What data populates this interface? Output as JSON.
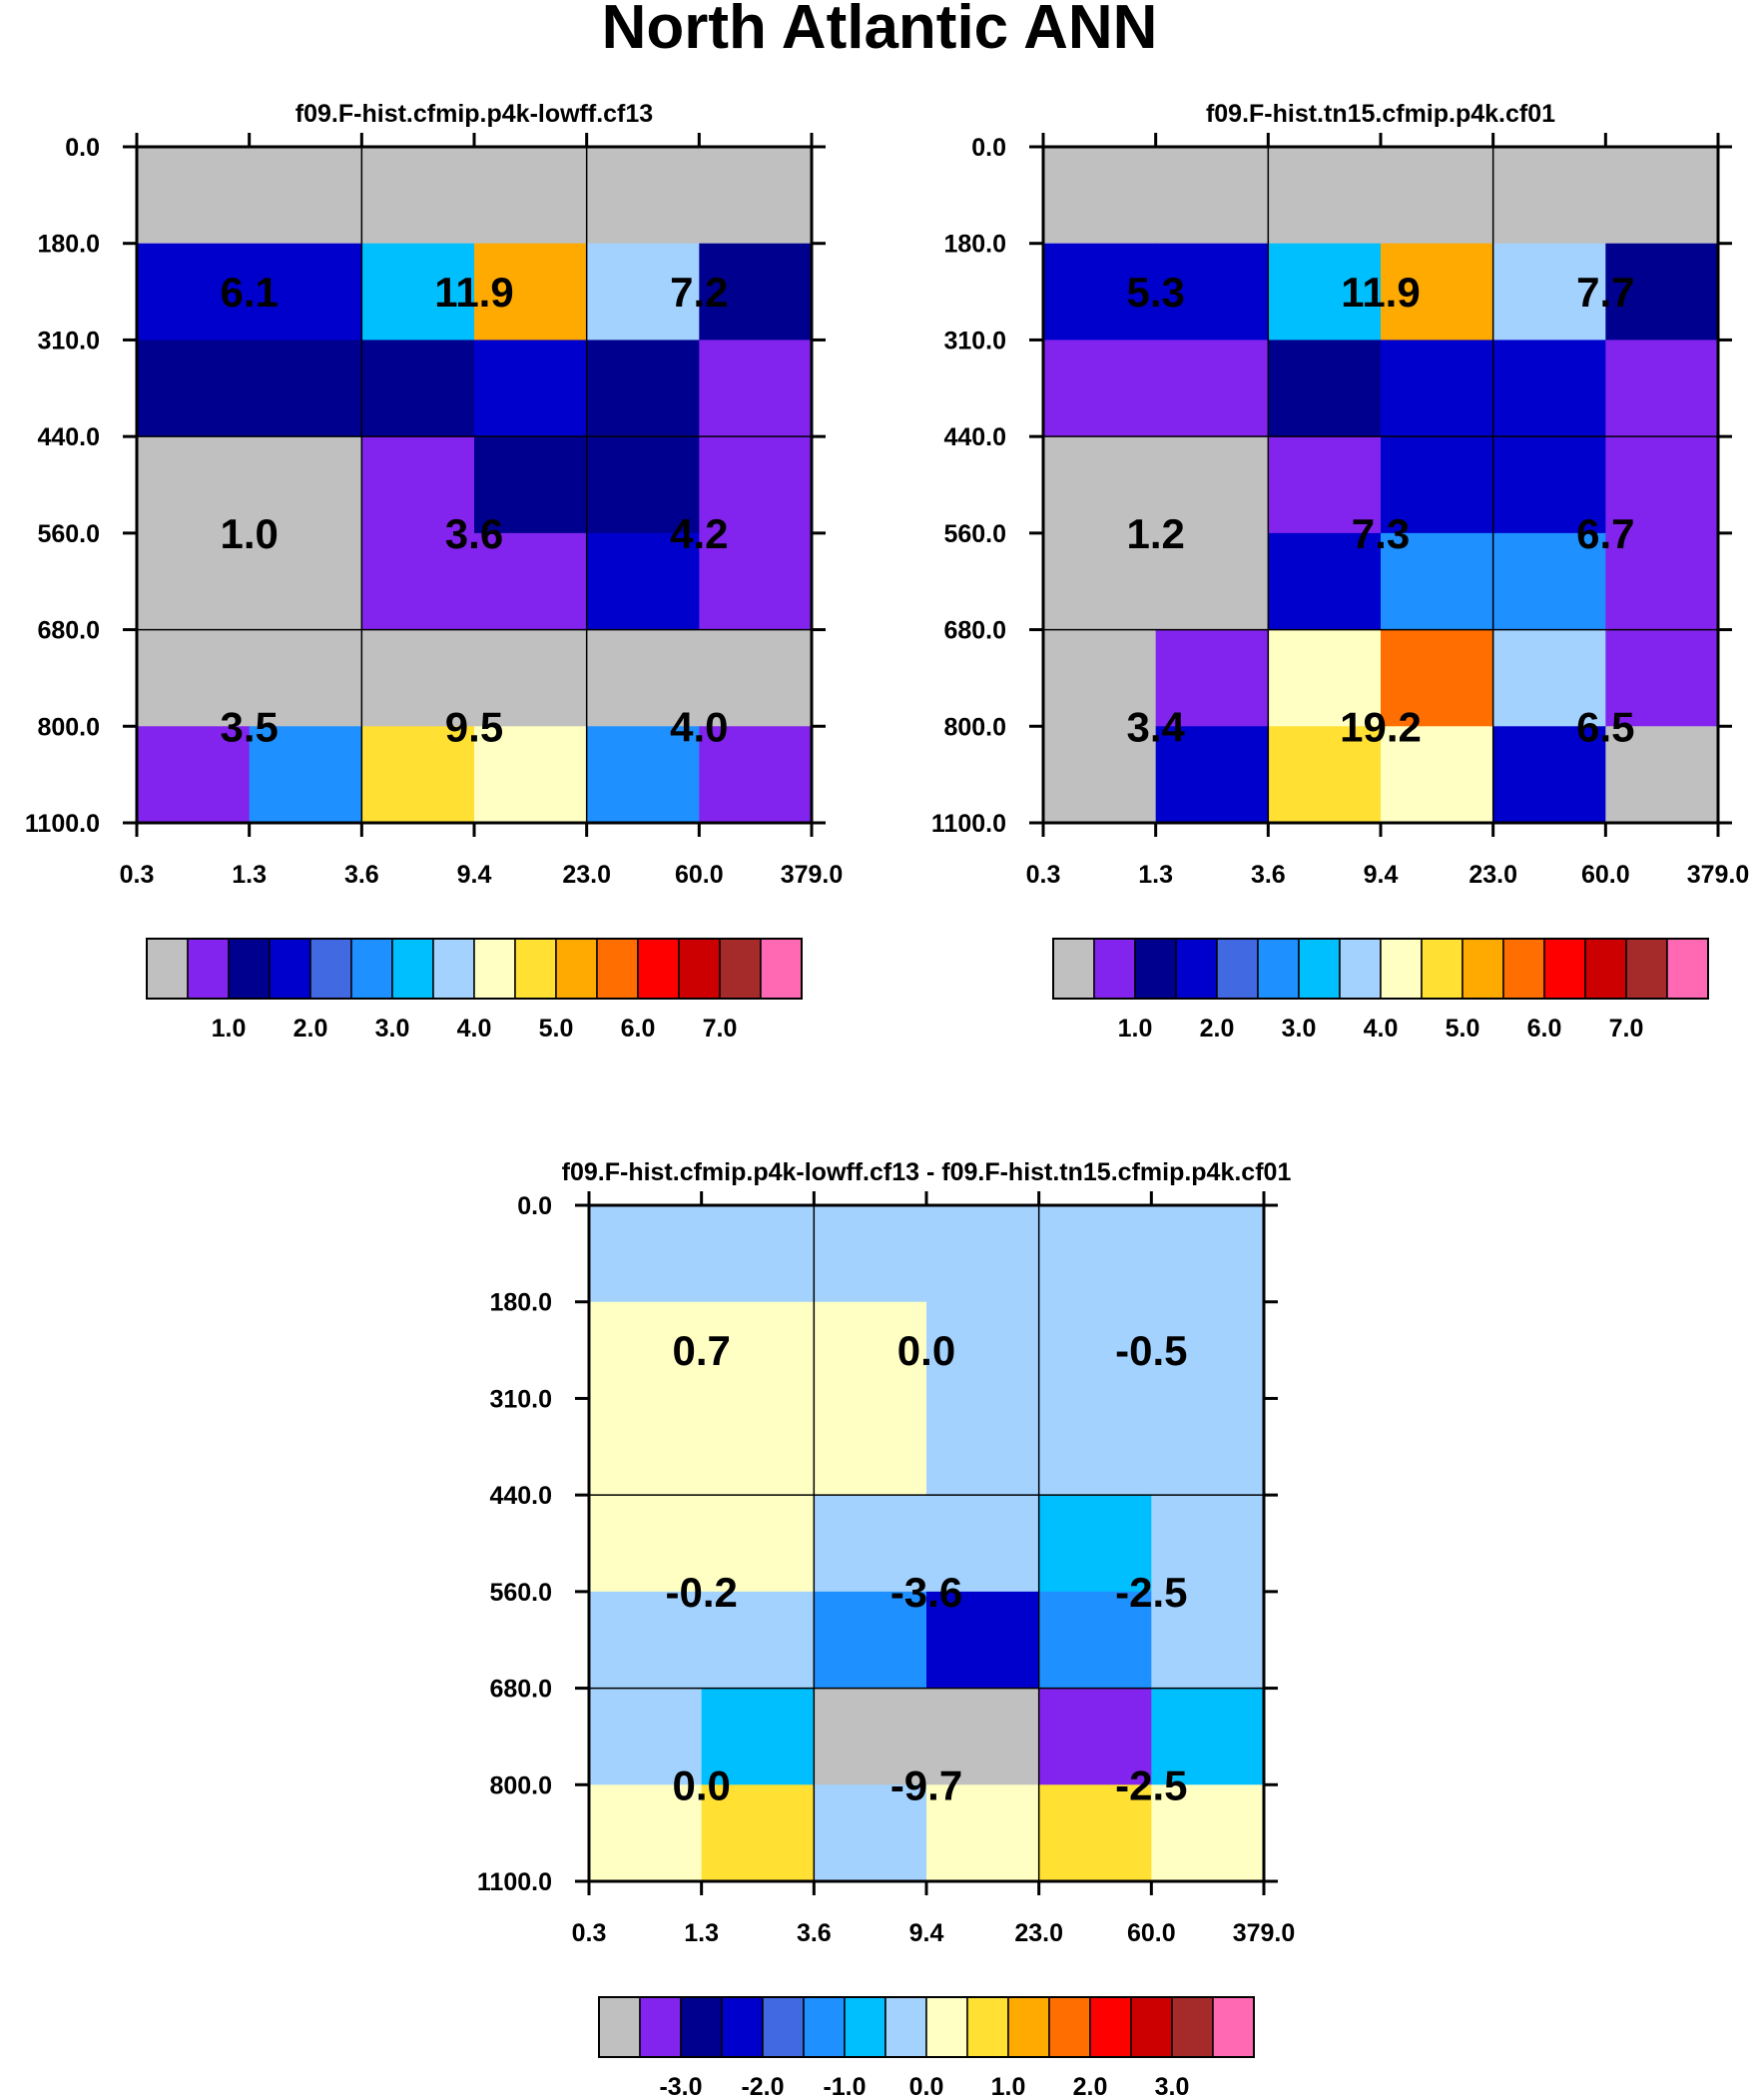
{
  "title": "North Atlantic ANN",
  "chart_data": [
    {
      "type": "heatmap",
      "title": "f09.F-hist.cfmip.p4k-lowff.cf13",
      "xlabel": "",
      "ylabel": "",
      "x_ticks": [
        "0.3",
        "1.3",
        "3.6",
        "9.4",
        "23.0",
        "60.0",
        "379.0"
      ],
      "y_ticks": [
        "0.0",
        "180.0",
        "310.0",
        "440.0",
        "560.0",
        "680.0",
        "800.0",
        "1100.0"
      ],
      "cell_colors": [
        [
          "gray",
          "gray",
          "gray",
          "gray",
          "gray",
          "gray"
        ],
        [
          "blue",
          "blue",
          "deepskyblue",
          "orange",
          "lightblue",
          "navy"
        ],
        [
          "navy",
          "navy",
          "navy",
          "blue",
          "navy",
          "purple"
        ],
        [
          "gray",
          "gray",
          "purple",
          "navy",
          "navy",
          "purple"
        ],
        [
          "gray",
          "gray",
          "purple",
          "purple",
          "blue",
          "purple"
        ],
        [
          "gray",
          "gray",
          "gray",
          "gray",
          "gray",
          "gray"
        ],
        [
          "purple",
          "dodgerblue",
          "gold",
          "lightyellow",
          "dodgerblue",
          "purple"
        ]
      ],
      "block_labels": [
        [
          "6.1",
          "11.9",
          "7.2"
        ],
        [
          "1.0",
          "3.6",
          "4.2"
        ],
        [
          "3.5",
          "9.5",
          "4.0"
        ]
      ],
      "colorbar": {
        "tick_labels": [
          "1.0",
          "2.0",
          "3.0",
          "4.0",
          "5.0",
          "6.0",
          "7.0"
        ],
        "tick_values": [
          1,
          2,
          3,
          4,
          5,
          6,
          7
        ]
      }
    },
    {
      "type": "heatmap",
      "title": "f09.F-hist.tn15.cfmip.p4k.cf01",
      "xlabel": "",
      "ylabel": "",
      "x_ticks": [
        "0.3",
        "1.3",
        "3.6",
        "9.4",
        "23.0",
        "60.0",
        "379.0"
      ],
      "y_ticks": [
        "0.0",
        "180.0",
        "310.0",
        "440.0",
        "560.0",
        "680.0",
        "800.0",
        "1100.0"
      ],
      "cell_colors": [
        [
          "gray",
          "gray",
          "gray",
          "gray",
          "gray",
          "gray"
        ],
        [
          "blue",
          "blue",
          "deepskyblue",
          "orange",
          "lightblue",
          "navy"
        ],
        [
          "purple",
          "purple",
          "navy",
          "blue",
          "blue",
          "purple"
        ],
        [
          "gray",
          "gray",
          "purple",
          "blue",
          "blue",
          "purple"
        ],
        [
          "gray",
          "gray",
          "blue",
          "dodgerblue",
          "dodgerblue",
          "purple"
        ],
        [
          "gray",
          "purple",
          "lightyellow",
          "darkorange",
          "lightblue",
          "purple"
        ],
        [
          "gray",
          "blue",
          "gold",
          "lightyellow",
          "blue",
          "gray"
        ]
      ],
      "block_labels": [
        [
          "5.3",
          "11.9",
          "7.7"
        ],
        [
          "1.2",
          "7.3",
          "6.7"
        ],
        [
          "3.4",
          "19.2",
          "6.5"
        ]
      ],
      "colorbar": {
        "tick_labels": [
          "1.0",
          "2.0",
          "3.0",
          "4.0",
          "5.0",
          "6.0",
          "7.0"
        ],
        "tick_values": [
          1,
          2,
          3,
          4,
          5,
          6,
          7
        ]
      }
    },
    {
      "type": "heatmap",
      "title": "f09.F-hist.cfmip.p4k-lowff.cf13 - f09.F-hist.tn15.cfmip.p4k.cf01",
      "xlabel": "",
      "ylabel": "",
      "x_ticks": [
        "0.3",
        "1.3",
        "3.6",
        "9.4",
        "23.0",
        "60.0",
        "379.0"
      ],
      "y_ticks": [
        "0.0",
        "180.0",
        "310.0",
        "440.0",
        "560.0",
        "680.0",
        "800.0",
        "1100.0"
      ],
      "cell_colors": [
        [
          "lightblue",
          "lightblue",
          "lightblue",
          "lightblue",
          "lightblue",
          "lightblue"
        ],
        [
          "lightyellow",
          "lightyellow",
          "lightyellow",
          "lightblue",
          "lightblue",
          "lightblue"
        ],
        [
          "lightyellow",
          "lightyellow",
          "lightyellow",
          "lightblue",
          "lightblue",
          "lightblue"
        ],
        [
          "lightyellow",
          "lightyellow",
          "lightblue",
          "lightblue",
          "deepskyblue",
          "lightblue"
        ],
        [
          "lightblue",
          "lightblue",
          "dodgerblue",
          "blue",
          "dodgerblue",
          "lightblue"
        ],
        [
          "lightblue",
          "deepskyblue",
          "gray",
          "gray",
          "purple",
          "deepskyblue"
        ],
        [
          "lightyellow",
          "gold",
          "lightblue",
          "lightyellow",
          "gold",
          "lightyellow"
        ]
      ],
      "block_labels": [
        [
          "0.7",
          "0.0",
          "-0.5"
        ],
        [
          "-0.2",
          "-3.6",
          "-2.5"
        ],
        [
          "0.0",
          "-9.7",
          "-2.5"
        ]
      ],
      "colorbar": {
        "tick_labels": [
          "-3.0",
          "-2.0",
          "-1.0",
          "0.0",
          "1.0",
          "2.0",
          "3.0"
        ],
        "tick_values": [
          -3,
          -2,
          -1,
          0,
          1,
          2,
          3
        ]
      }
    }
  ],
  "palette": {
    "gray": "#c0c0c0",
    "purple": "#8224ed",
    "navy": "#00008f",
    "blue": "#0000cd",
    "royalblue": "#4169e1",
    "dodgerblue": "#1e90ff",
    "deepskyblue": "#00bfff",
    "lightblue": "#a3d2ff",
    "lightyellow": "#ffffc4",
    "gold": "#ffe033",
    "orange": "#ffaa00",
    "darkorange": "#ff6e00",
    "red": "#ff0000",
    "darkred": "#cc0000",
    "brown": "#a52a2a",
    "pink": "#ff69b4"
  },
  "colorbar_swatches": [
    "gray",
    "purple",
    "navy",
    "blue",
    "royalblue",
    "dodgerblue",
    "deepskyblue",
    "lightblue",
    "lightyellow",
    "gold",
    "orange",
    "darkorange",
    "red",
    "darkred",
    "brown",
    "pink"
  ]
}
